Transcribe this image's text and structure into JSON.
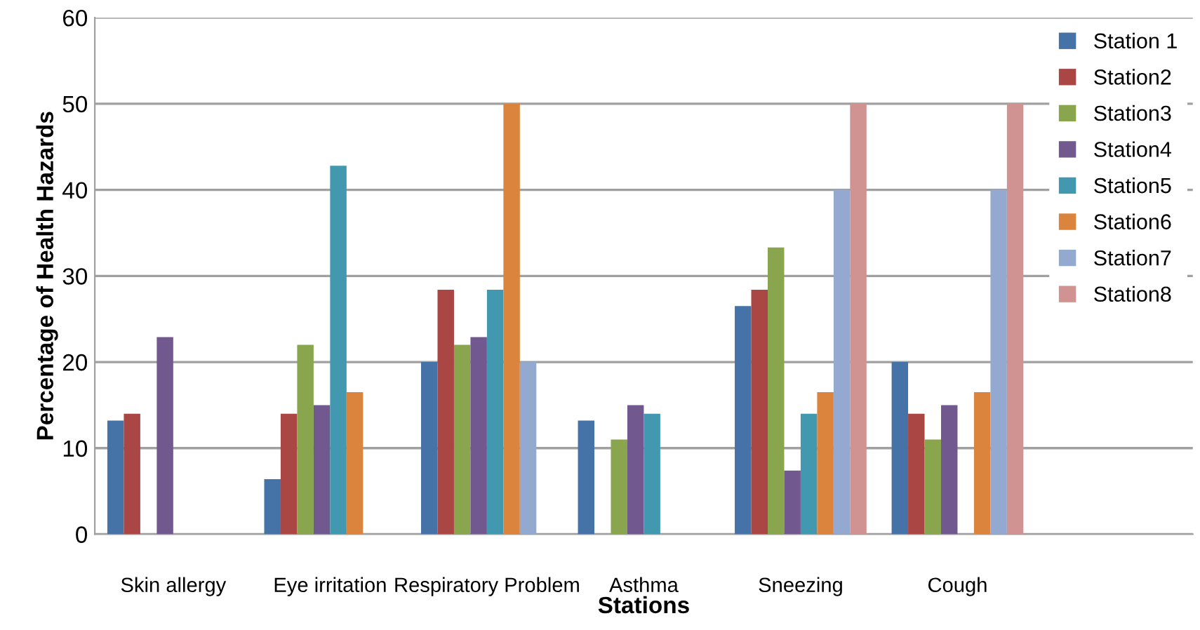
{
  "chart_data": {
    "type": "bar",
    "xlabel": "Stations",
    "ylabel": "Percentage of Health Hazards",
    "categories": [
      "Skin allergy",
      "Eye irritation",
      "Respiratory Problem",
      "Asthma",
      "Sneezing",
      "Cough",
      null
    ],
    "series": [
      {
        "name": "Station 1",
        "color": "#4572a7",
        "values": [
          13.2,
          6.4,
          20,
          13.2,
          26.5,
          20,
          null
        ]
      },
      {
        "name": "Station2",
        "color": "#aa4643",
        "values": [
          14,
          14,
          28.4,
          null,
          28.4,
          14,
          null
        ]
      },
      {
        "name": "Station3",
        "color": "#89a54e",
        "values": [
          null,
          22,
          22,
          11,
          33.3,
          11,
          null
        ]
      },
      {
        "name": "Station4",
        "color": "#71588f",
        "values": [
          22.9,
          15,
          22.9,
          15,
          7.4,
          15,
          null
        ]
      },
      {
        "name": "Station5",
        "color": "#4198af",
        "values": [
          null,
          42.8,
          28.4,
          14,
          14,
          null,
          null
        ]
      },
      {
        "name": "Station6",
        "color": "#db843d",
        "values": [
          null,
          16.5,
          50,
          null,
          16.5,
          16.5,
          null
        ]
      },
      {
        "name": "Station7",
        "color": "#93a9cf",
        "values": [
          null,
          null,
          20,
          null,
          40,
          40,
          null
        ]
      },
      {
        "name": "Station8",
        "color": "#d19392",
        "values": [
          null,
          null,
          null,
          null,
          50,
          50,
          null
        ]
      }
    ],
    "ylim": [
      0,
      60
    ],
    "yticks": [
      0,
      10,
      20,
      30,
      40,
      50,
      60
    ],
    "grid": "y",
    "legend": "top right"
  }
}
